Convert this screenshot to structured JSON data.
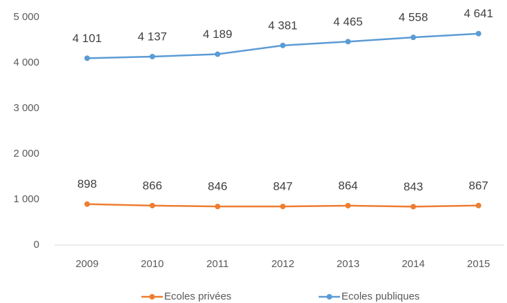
{
  "chart_data": {
    "type": "line",
    "categories": [
      "2009",
      "2010",
      "2011",
      "2012",
      "2013",
      "2014",
      "2015"
    ],
    "series": [
      {
        "name": "Ecoles privées",
        "color": "#ed7d31",
        "values": [
          898,
          866,
          846,
          847,
          864,
          843,
          867
        ]
      },
      {
        "name": "Ecoles publiques",
        "color": "#5b9bd5",
        "values": [
          4101,
          4137,
          4189,
          4381,
          4465,
          4558,
          4641
        ],
        "value_labels": [
          "4 101",
          "4 137",
          "4 189",
          "4 381",
          "4 465",
          "4 558",
          "4 641"
        ]
      }
    ],
    "ylim": [
      0,
      5000
    ],
    "yticks": [
      0,
      {
        "value": 1000,
        "label": "1 000"
      },
      {
        "value": 2000,
        "label": "2 000"
      },
      {
        "value": 3000,
        "label": "3 000"
      },
      {
        "value": 4000,
        "label": "4 000"
      },
      {
        "value": 5000,
        "label": "5 000"
      }
    ],
    "grid": false,
    "legend": "bottom"
  }
}
